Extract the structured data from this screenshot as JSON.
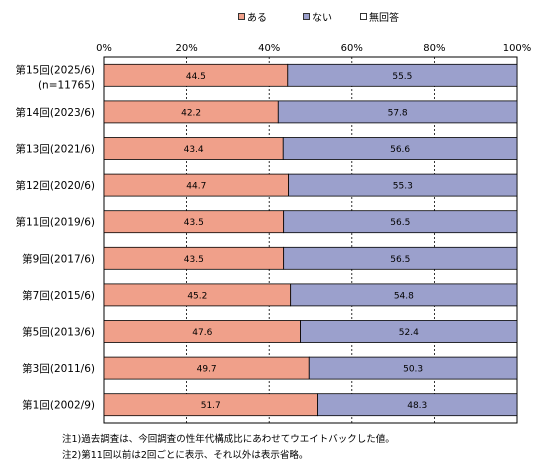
{
  "chart_data": {
    "type": "bar",
    "orientation": "horizontal",
    "stacked": true,
    "title": "",
    "xlabel": "",
    "ylabel": "",
    "xlim": [
      0,
      100
    ],
    "x_ticks": [
      "0%",
      "20%",
      "40%",
      "60%",
      "80%",
      "100%"
    ],
    "grid": true,
    "legend_position": "top",
    "categories": [
      {
        "label": "第15回(2025/6)",
        "sublabel": "(n=11765)"
      },
      {
        "label": "第14回(2023/6)"
      },
      {
        "label": "第13回(2021/6)"
      },
      {
        "label": "第12回(2020/6)"
      },
      {
        "label": "第11回(2019/6)"
      },
      {
        "label": "第9回(2017/6)"
      },
      {
        "label": "第7回(2015/6)"
      },
      {
        "label": "第5回(2013/6)"
      },
      {
        "label": "第3回(2011/6)"
      },
      {
        "label": "第1回(2002/9)"
      }
    ],
    "series": [
      {
        "name": "ある",
        "color": "#f0a08a",
        "values": [
          44.5,
          42.2,
          43.4,
          44.7,
          43.5,
          43.5,
          45.2,
          47.6,
          49.7,
          51.7
        ]
      },
      {
        "name": "ない",
        "color": "#9ba0cc",
        "values": [
          55.5,
          57.8,
          56.6,
          55.3,
          56.5,
          56.5,
          54.8,
          52.4,
          50.3,
          48.3
        ]
      },
      {
        "name": "無回答",
        "color": "#ffffff",
        "values": [
          0,
          0,
          0,
          0,
          0,
          0,
          0,
          0,
          0,
          0
        ]
      }
    ]
  },
  "notes": [
    "注1)過去調査は、今回調査の性年代構成比にあわせてウエイトバックした値。",
    "注2)第11回以前は2回ごとに表示、それ以外は表示省略。"
  ]
}
